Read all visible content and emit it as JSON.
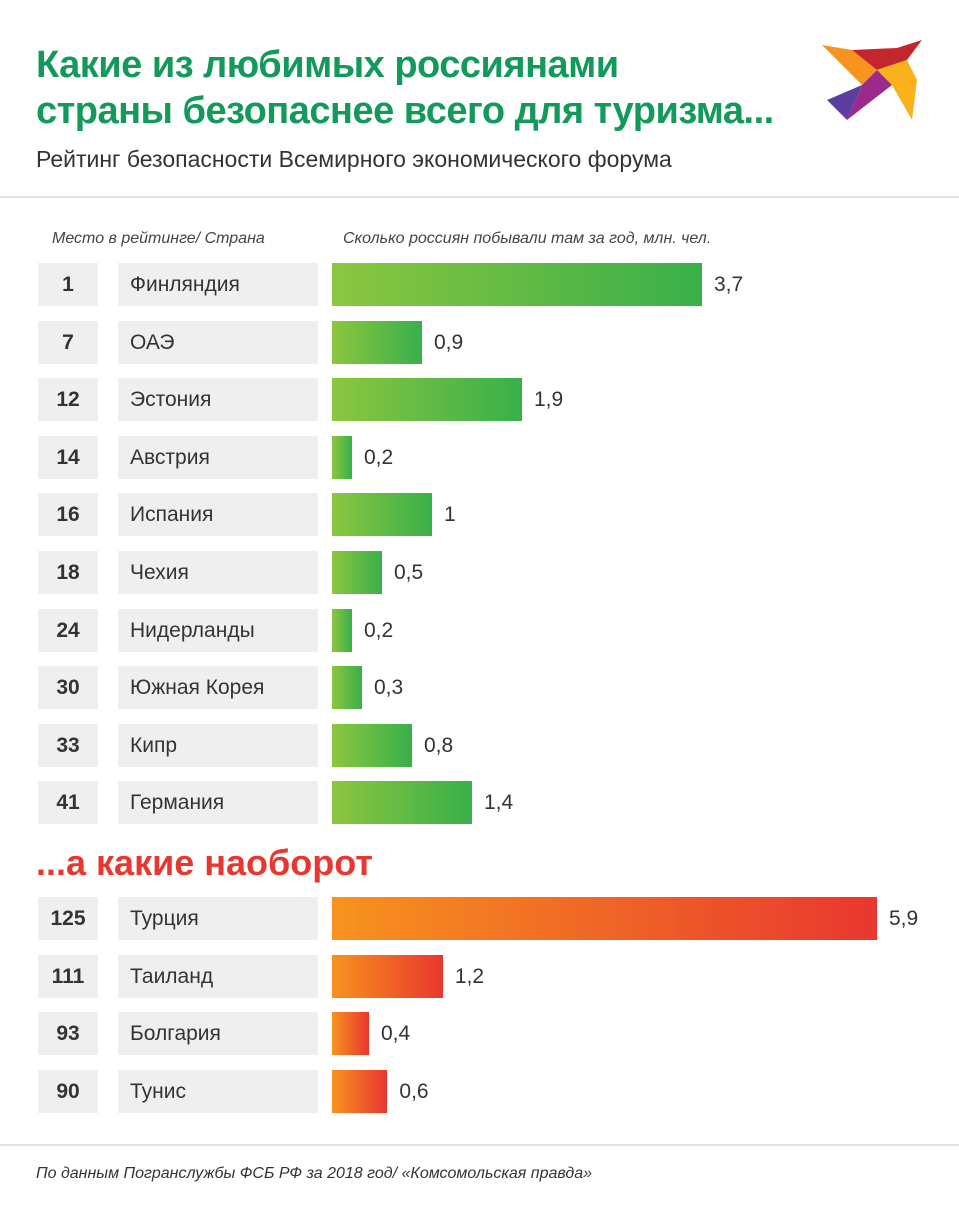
{
  "header": {
    "title_line1": "Какие из любимых россиянами",
    "title_line2": "страны безопаснее всего для туризма...",
    "subtitle": "Рейтинг безопасности Всемирного экономического форума"
  },
  "column_headers": {
    "left": "Место в рейтинге/ Страна",
    "right": "Сколько россиян побывали там за год, млн. чел."
  },
  "section2_heading": "...а какие наоборот",
  "footer": "По данным Погранслужбы ФСБ РФ за 2018 год/ «Комсомольская правда»",
  "colors": {
    "title": "#13995a",
    "safe_bar_start": "#8cc63f",
    "safe_bar_end": "#38b04a",
    "unsafe_bar_start": "#f7931e",
    "unsafe_bar_end": "#e8372f",
    "heading2": "#e8372f"
  },
  "chart_data": [
    {
      "type": "bar",
      "orientation": "horizontal",
      "title": "",
      "xlabel": "Сколько россиян побывали там за год, млн. чел.",
      "categories": [
        "Финляндия",
        "ОАЭ",
        "Эстония",
        "Австрия",
        "Испания",
        "Чехия",
        "Нидерланды",
        "Южная Корея",
        "Кипр",
        "Германия"
      ],
      "ranks": [
        "1",
        "7",
        "12",
        "14",
        "16",
        "18",
        "24",
        "30",
        "33",
        "41"
      ],
      "values": [
        3.7,
        0.9,
        1.9,
        0.2,
        1,
        0.5,
        0.2,
        0.3,
        0.8,
        1.4
      ],
      "labels": [
        "3,7",
        "0,9",
        "1,9",
        "0,2",
        "1",
        "0,5",
        "0,2",
        "0,3",
        "0,8",
        "1,4"
      ]
    },
    {
      "type": "bar",
      "orientation": "horizontal",
      "title": "...а какие наоборот",
      "categories": [
        "Турция",
        "Таиланд",
        "Болгария",
        "Тунис"
      ],
      "ranks": [
        "125",
        "111",
        "93",
        "90"
      ],
      "values": [
        5.9,
        1.2,
        0.4,
        0.6
      ],
      "labels": [
        "5,9",
        "1,2",
        "0,4",
        "0,6"
      ]
    }
  ]
}
